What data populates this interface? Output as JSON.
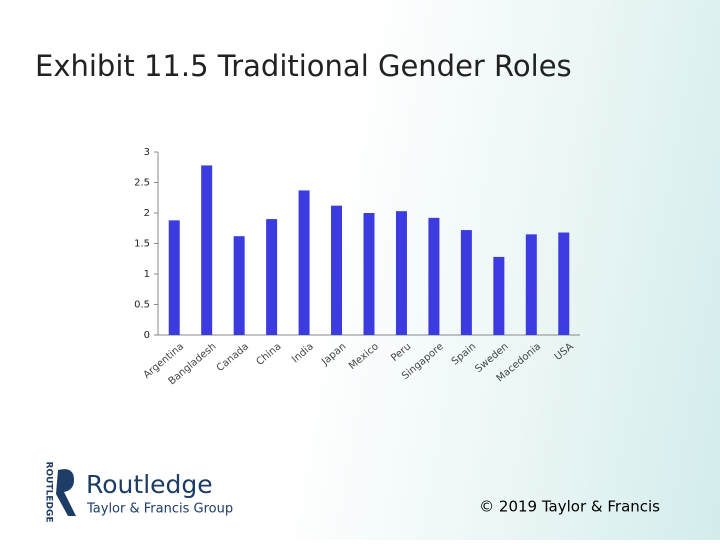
{
  "chart_data": {
    "type": "bar",
    "title": "Exhibit 11.5 Traditional Gender Roles",
    "categories": [
      "Argentina",
      "Bangladesh",
      "Canada",
      "China",
      "India",
      "Japan",
      "Mexico",
      "Peru",
      "Singapore",
      "Spain",
      "Sweden",
      "Macedonia",
      "USA"
    ],
    "values": [
      1.88,
      2.78,
      1.62,
      1.9,
      2.37,
      2.12,
      2.0,
      2.03,
      1.92,
      1.72,
      1.28,
      1.65,
      1.68
    ],
    "color": "#3b3be0",
    "ylim": [
      0,
      3
    ],
    "yticks": [
      0,
      0.5,
      1,
      1.5,
      2,
      2.5,
      3
    ],
    "grid": false
  },
  "footer": {
    "logo_side": "ROUTLEDGE",
    "logo_name": "Routledge",
    "logo_group": "Taylor & Francis Group",
    "copyright": "© 2019 Taylor & Francis"
  }
}
